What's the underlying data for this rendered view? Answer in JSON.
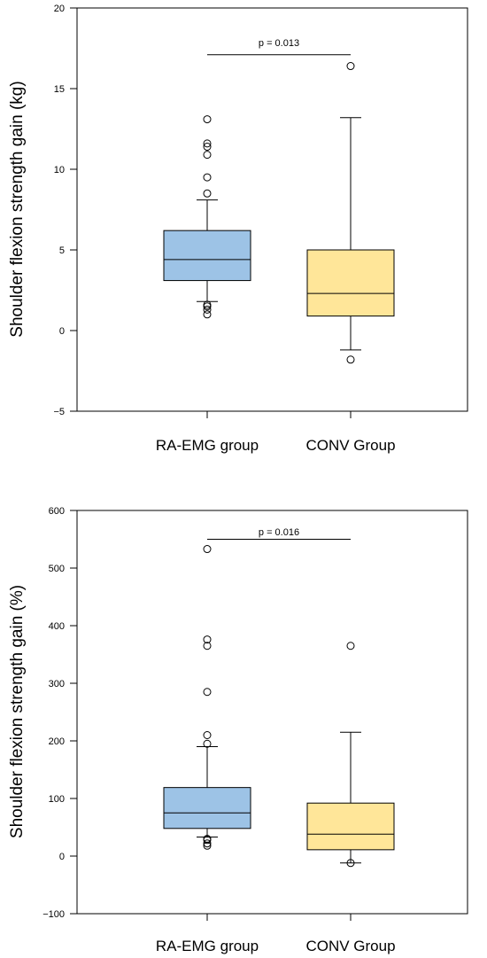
{
  "chart_data": [
    {
      "type": "box",
      "ylabel": "Shoulder flexion strength gain (kg)",
      "ylim": [
        -5,
        20
      ],
      "yticks": [
        "20",
        "15",
        "10",
        "5",
        "0",
        "−5"
      ],
      "categories": [
        "RA-EMG group",
        "CONV Group"
      ],
      "colors": [
        "#9dc3e6",
        "#ffe699"
      ],
      "boxes": [
        {
          "whisker_low": 1.8,
          "q1": 3.1,
          "median": 4.4,
          "q3": 6.2,
          "whisker_high": 8.1,
          "outliers": [
            1.0,
            1.3,
            1.5,
            1.6,
            8.5,
            9.5,
            10.9,
            11.4,
            11.6,
            13.1
          ]
        },
        {
          "whisker_low": -1.2,
          "q1": 0.9,
          "median": 2.3,
          "q3": 5.0,
          "whisker_high": 13.2,
          "outliers": [
            -1.8,
            16.4
          ]
        }
      ],
      "annotation": {
        "text": "p = 0.013",
        "y": 17.1
      }
    },
    {
      "type": "box",
      "ylabel": "Shoulder flexion strength gain (%)",
      "ylim": [
        -100,
        600
      ],
      "yticks": [
        "600",
        "500",
        "400",
        "300",
        "200",
        "100",
        "0",
        "−100"
      ],
      "categories": [
        "RA-EMG group",
        "CONV Group"
      ],
      "colors": [
        "#9dc3e6",
        "#ffe699"
      ],
      "boxes": [
        {
          "whisker_low": 33,
          "q1": 48,
          "median": 75,
          "q3": 119,
          "whisker_high": 190,
          "outliers": [
            18,
            22,
            28,
            30,
            195,
            210,
            285,
            365,
            376,
            533
          ]
        },
        {
          "whisker_low": -12,
          "q1": 11,
          "median": 38,
          "q3": 92,
          "whisker_high": 215,
          "outliers": [
            -12,
            365
          ]
        }
      ],
      "annotation": {
        "text": "p = 0.016",
        "y": 550
      }
    }
  ]
}
